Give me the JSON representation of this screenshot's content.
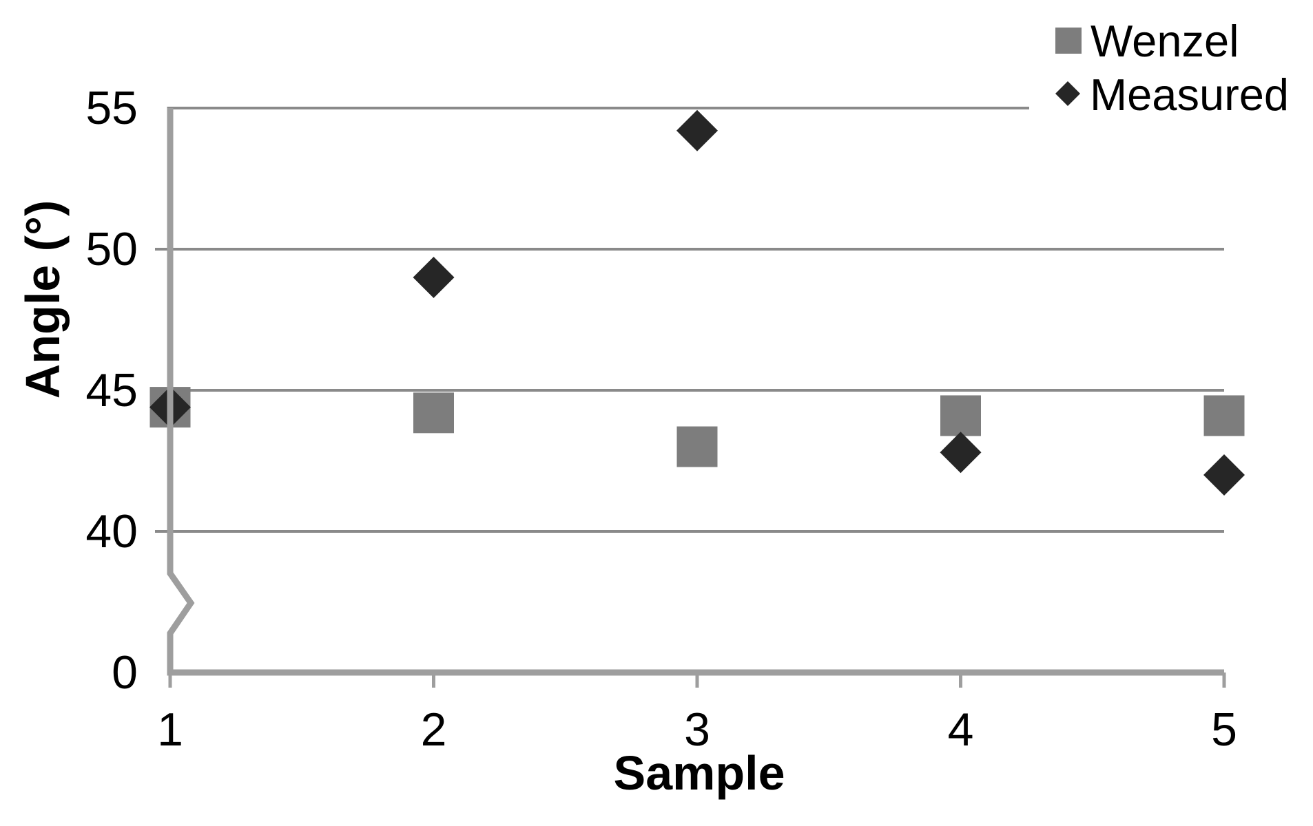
{
  "chart_data": {
    "type": "scatter",
    "title": "",
    "xlabel": "Sample",
    "ylabel": "Angle (°)",
    "categories": [
      "1",
      "2",
      "3",
      "4",
      "5"
    ],
    "series": [
      {
        "name": "Wenzel",
        "marker": "square",
        "color": "#7d7d7d",
        "values": [
          44.4,
          44.2,
          43.0,
          44.1,
          44.1
        ]
      },
      {
        "name": "Measured",
        "marker": "diamond",
        "color": "#262626",
        "values": [
          44.4,
          49.0,
          54.2,
          42.8,
          42.0
        ]
      }
    ],
    "x_axis": {
      "label": "Sample",
      "tick_labels": [
        "1",
        "2",
        "3",
        "4",
        "5"
      ]
    },
    "y_axis": {
      "label": "Angle (°)",
      "tick_labels": [
        "55",
        "50",
        "45",
        "40",
        "0"
      ],
      "tick_values": [
        55,
        50,
        45,
        40,
        0
      ],
      "grid_values": [
        55,
        50,
        45,
        40
      ],
      "value_range_shown": [
        40,
        55
      ],
      "broken_axis": true,
      "break_between": [
        0,
        40
      ]
    },
    "legend": {
      "position": "top-right",
      "entries": [
        "Wenzel",
        "Measured"
      ]
    },
    "grid": "horizontal"
  },
  "colors": {
    "background": "#ffffff",
    "gridline": "#8a8a8a",
    "axis": "#9e9e9e",
    "text": "#000000",
    "wenzel_marker": "#7d7d7d",
    "measured_marker": "#262626"
  }
}
